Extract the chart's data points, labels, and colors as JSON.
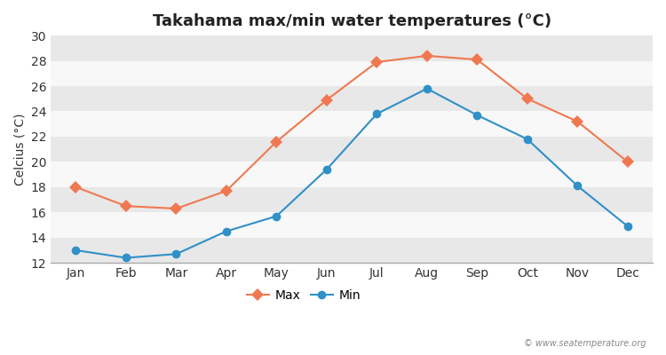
{
  "months": [
    "Jan",
    "Feb",
    "Mar",
    "Apr",
    "May",
    "Jun",
    "Jul",
    "Aug",
    "Sep",
    "Oct",
    "Nov",
    "Dec"
  ],
  "max_temps": [
    18.0,
    16.5,
    16.3,
    17.7,
    21.6,
    24.9,
    27.9,
    28.4,
    28.1,
    25.0,
    23.2,
    20.0
  ],
  "min_temps": [
    13.0,
    12.4,
    12.7,
    14.5,
    15.7,
    19.4,
    23.8,
    25.8,
    23.7,
    21.8,
    18.1,
    14.9
  ],
  "max_color": "#f07850",
  "min_color": "#3090c8",
  "fig_bg_color": "#ffffff",
  "plot_bg_color": "#f0f0f0",
  "band_color_light": "#f8f8f8",
  "band_color_dark": "#e8e8e8",
  "grid_color": "#cccccc",
  "title": "Takahama max/min water temperatures (°C)",
  "ylabel": "Celcius (°C)",
  "ylim": [
    12,
    30
  ],
  "yticks": [
    12,
    14,
    16,
    18,
    20,
    22,
    24,
    26,
    28,
    30
  ],
  "legend_labels": [
    "Max",
    "Min"
  ],
  "watermark": "© www.seatemperature.org",
  "title_fontsize": 13,
  "label_fontsize": 10,
  "tick_fontsize": 10
}
